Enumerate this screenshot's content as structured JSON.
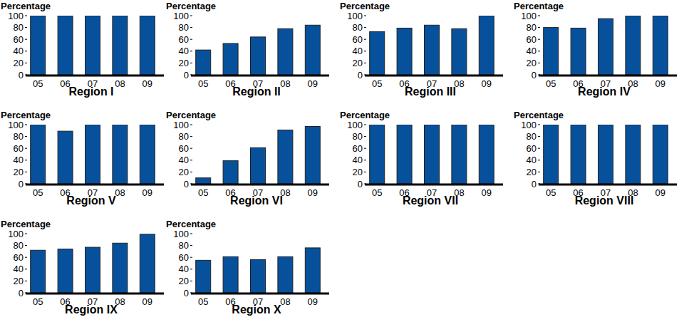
{
  "chart_data": [
    {
      "type": "bar",
      "title": "Region I",
      "y_label": "Percentage",
      "categories": [
        "05",
        "06",
        "07",
        "08",
        "09"
      ],
      "values": [
        100,
        100,
        100,
        100,
        100
      ],
      "color": "#07519c",
      "ylim": [
        0,
        100
      ],
      "yticks": [
        0,
        20,
        40,
        60,
        80,
        100
      ]
    },
    {
      "type": "bar",
      "title": "Region II",
      "y_label": "Percentage",
      "categories": [
        "05",
        "06",
        "07",
        "08",
        "09"
      ],
      "values": [
        42,
        53,
        64,
        78,
        84
      ],
      "color": "#07519c",
      "ylim": [
        0,
        100
      ],
      "yticks": [
        0,
        20,
        40,
        60,
        80,
        100
      ]
    },
    {
      "type": "bar",
      "title": "Region III",
      "y_label": "Percentage",
      "categories": [
        "05",
        "06",
        "07",
        "08",
        "09"
      ],
      "values": [
        73,
        79,
        84,
        78,
        100
      ],
      "color": "#07519c",
      "ylim": [
        0,
        100
      ],
      "yticks": [
        0,
        20,
        40,
        60,
        80,
        100
      ]
    },
    {
      "type": "bar",
      "title": "Region IV",
      "y_label": "Percentage",
      "categories": [
        "05",
        "06",
        "07",
        "08",
        "09"
      ],
      "values": [
        80,
        79,
        95,
        100,
        100
      ],
      "color": "#07519c",
      "ylim": [
        0,
        100
      ],
      "yticks": [
        0,
        20,
        40,
        60,
        80,
        100
      ]
    },
    {
      "type": "bar",
      "title": "Region V",
      "y_label": "Percentage",
      "categories": [
        "05",
        "06",
        "07",
        "08",
        "09"
      ],
      "values": [
        100,
        89,
        100,
        100,
        100
      ],
      "color": "#07519c",
      "ylim": [
        0,
        100
      ],
      "yticks": [
        0,
        20,
        40,
        60,
        80,
        100
      ]
    },
    {
      "type": "bar",
      "title": "Region VI",
      "y_label": "Percentage",
      "categories": [
        "05",
        "06",
        "07",
        "08",
        "09"
      ],
      "values": [
        10,
        39,
        61,
        91,
        97
      ],
      "color": "#07519c",
      "ylim": [
        0,
        100
      ],
      "yticks": [
        0,
        20,
        40,
        60,
        80,
        100
      ]
    },
    {
      "type": "bar",
      "title": "Region VII",
      "y_label": "Percentage",
      "categories": [
        "05",
        "06",
        "07",
        "08",
        "09"
      ],
      "values": [
        100,
        100,
        100,
        100,
        100
      ],
      "color": "#07519c",
      "ylim": [
        0,
        100
      ],
      "yticks": [
        0,
        20,
        40,
        60,
        80,
        100
      ]
    },
    {
      "type": "bar",
      "title": "Region VIII",
      "y_label": "Percentage",
      "categories": [
        "05",
        "06",
        "07",
        "08",
        "09"
      ],
      "values": [
        100,
        100,
        100,
        100,
        100
      ],
      "color": "#07519c",
      "ylim": [
        0,
        100
      ],
      "yticks": [
        0,
        20,
        40,
        60,
        80,
        100
      ]
    },
    {
      "type": "bar",
      "title": "Region IX",
      "y_label": "Percentage",
      "categories": [
        "05",
        "06",
        "07",
        "08",
        "09"
      ],
      "values": [
        72,
        74,
        77,
        84,
        99
      ],
      "color": "#07519c",
      "ylim": [
        0,
        100
      ],
      "yticks": [
        0,
        20,
        40,
        60,
        80,
        100
      ]
    },
    {
      "type": "bar",
      "title": "Region X",
      "y_label": "Percentage",
      "categories": [
        "05",
        "06",
        "07",
        "08",
        "09"
      ],
      "values": [
        55,
        61,
        56,
        61,
        76
      ],
      "color": "#07519c",
      "ylim": [
        0,
        100
      ],
      "yticks": [
        0,
        20,
        40,
        60,
        80,
        100
      ]
    }
  ]
}
